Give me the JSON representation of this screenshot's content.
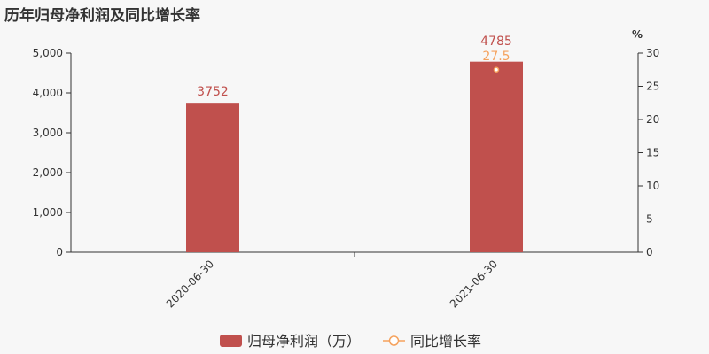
{
  "title": "历年归母净利润及同比增长率",
  "chart_data": {
    "type": "bar",
    "categories": [
      "2020-06-30",
      "2021-06-30"
    ],
    "series": [
      {
        "name": "归母净利润（万）",
        "type": "bar",
        "axis": "left",
        "values": [
          3752,
          4785
        ],
        "labels": [
          "3752",
          "4785"
        ],
        "color": "#c0504d"
      },
      {
        "name": "同比增长率",
        "type": "line",
        "axis": "right",
        "values": [
          null,
          27.5
        ],
        "labels": [
          "",
          "27.5"
        ],
        "color": "#f5a25d"
      }
    ],
    "y_left": {
      "range": [
        0,
        5000
      ],
      "ticks": [
        "0",
        "1,000",
        "2,000",
        "3,000",
        "4,000",
        "5,000"
      ]
    },
    "y_right": {
      "label": "%",
      "range": [
        0,
        30
      ],
      "ticks": [
        "0",
        "5",
        "10",
        "15",
        "20",
        "25",
        "30"
      ]
    },
    "grid": false,
    "legend": "bottom"
  }
}
